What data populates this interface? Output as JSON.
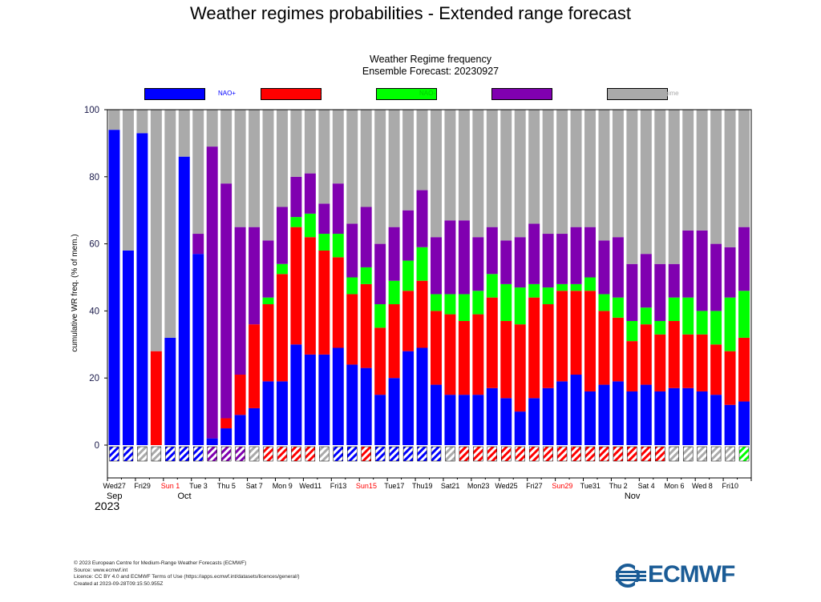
{
  "page": {
    "title": "Weather regimes probabilities - Extended range forecast"
  },
  "chart_data": {
    "type": "bar",
    "stacked": true,
    "title": "Weather Regime frequency",
    "subtitle": "Ensemble Forecast: 20230927",
    "ylabel": "cumulative WR freq. (% of mem.)",
    "ylim": [
      0,
      100
    ],
    "yticks": [
      0,
      20,
      40,
      60,
      80,
      100
    ],
    "grid": false,
    "legend_position": "top",
    "year_label": "2023",
    "series": [
      {
        "name": "NAO+",
        "color": "#0000ff",
        "label_color": "#0000ff",
        "values": [
          94,
          58,
          93,
          0,
          32,
          86,
          57,
          2,
          5,
          9,
          11,
          19,
          19,
          30,
          27,
          27,
          29,
          24,
          23,
          15,
          20,
          28,
          29,
          18,
          15,
          15,
          15,
          17,
          14,
          10,
          14,
          17,
          19,
          21,
          16,
          18,
          19,
          16,
          18,
          16,
          17,
          17,
          16,
          15,
          12,
          13
        ]
      },
      {
        "name": "Block",
        "color": "#ff0000",
        "label_color": "#ff0000",
        "values": [
          0,
          0,
          0,
          28,
          0,
          0,
          0,
          0,
          3,
          12,
          25,
          23,
          32,
          35,
          35,
          31,
          27,
          21,
          25,
          20,
          22,
          18,
          20,
          22,
          24,
          22,
          24,
          27,
          23,
          26,
          30,
          25,
          27,
          25,
          30,
          22,
          19,
          15,
          18,
          17,
          20,
          16,
          17,
          15,
          16,
          19
        ]
      },
      {
        "name": "NAO-",
        "color": "#00ff00",
        "label_color": "#00cc00",
        "values": [
          0,
          0,
          0,
          0,
          0,
          0,
          0,
          0,
          0,
          0,
          0,
          2,
          3,
          3,
          7,
          5,
          7,
          5,
          5,
          7,
          7,
          9,
          10,
          5,
          6,
          8,
          7,
          7,
          11,
          11,
          4,
          5,
          2,
          2,
          4,
          5,
          6,
          6,
          5,
          4,
          7,
          11,
          7,
          10,
          16,
          14
        ]
      },
      {
        "name": "ATR",
        "color": "#8000b0",
        "label_color": "#8000b0",
        "values": [
          0,
          0,
          0,
          0,
          0,
          0,
          6,
          87,
          70,
          44,
          29,
          17,
          17,
          12,
          12,
          9,
          15,
          16,
          18,
          18,
          16,
          15,
          17,
          17,
          22,
          22,
          16,
          14,
          13,
          15,
          18,
          16,
          15,
          17,
          15,
          16,
          18,
          17,
          16,
          17,
          10,
          20,
          24,
          20,
          15,
          19
        ]
      },
      {
        "name": "no regime",
        "color": "#aaaaaa",
        "label_color": "#aaaaaa",
        "values": [
          6,
          42,
          7,
          72,
          68,
          14,
          37,
          11,
          22,
          35,
          35,
          39,
          29,
          20,
          19,
          28,
          22,
          34,
          29,
          40,
          35,
          30,
          24,
          38,
          33,
          33,
          38,
          35,
          39,
          38,
          34,
          37,
          37,
          35,
          35,
          39,
          38,
          46,
          43,
          46,
          46,
          36,
          36,
          40,
          41,
          35
        ]
      }
    ],
    "bottom_markers": [
      "NAO+",
      "NAO+",
      "no regime",
      "no regime",
      "NAO+",
      "NAO+",
      "NAO+",
      "ATR",
      "ATR",
      "ATR",
      "no regime",
      "Block",
      "Block",
      "Block",
      "Block",
      "no regime",
      "NAO+",
      "NAO+",
      "Block",
      "NAO+",
      "NAO+",
      "NAO+",
      "NAO+",
      "NAO+",
      "no regime",
      "Block",
      "Block",
      "Block",
      "Block",
      "Block",
      "Block",
      "Block",
      "Block",
      "Block",
      "Block",
      "Block",
      "Block",
      "Block",
      "Block",
      "Block",
      "no regime",
      "no regime",
      "no regime",
      "no regime",
      "no regime",
      "NAO-"
    ],
    "x_tick_labels": [
      {
        "index": 0,
        "label": "Wed27",
        "color": "#000000"
      },
      {
        "index": 2,
        "label": "Fri29",
        "color": "#000000"
      },
      {
        "index": 4,
        "label": "Sun 1",
        "color": "#ff0000"
      },
      {
        "index": 6,
        "label": "Tue 3",
        "color": "#000000"
      },
      {
        "index": 8,
        "label": "Thu 5",
        "color": "#000000"
      },
      {
        "index": 10,
        "label": "Sat 7",
        "color": "#000000"
      },
      {
        "index": 12,
        "label": "Mon 9",
        "color": "#000000"
      },
      {
        "index": 14,
        "label": "Wed11",
        "color": "#000000"
      },
      {
        "index": 16,
        "label": "Fri13",
        "color": "#000000"
      },
      {
        "index": 18,
        "label": "Sun15",
        "color": "#ff0000"
      },
      {
        "index": 20,
        "label": "Tue17",
        "color": "#000000"
      },
      {
        "index": 22,
        "label": "Thu19",
        "color": "#000000"
      },
      {
        "index": 24,
        "label": "Sat21",
        "color": "#000000"
      },
      {
        "index": 26,
        "label": "Mon23",
        "color": "#000000"
      },
      {
        "index": 28,
        "label": "Wed25",
        "color": "#000000"
      },
      {
        "index": 30,
        "label": "Fri27",
        "color": "#000000"
      },
      {
        "index": 32,
        "label": "Sun29",
        "color": "#ff0000"
      },
      {
        "index": 34,
        "label": "Tue31",
        "color": "#000000"
      },
      {
        "index": 36,
        "label": "Thu 2",
        "color": "#000000"
      },
      {
        "index": 38,
        "label": "Sat 4",
        "color": "#000000"
      },
      {
        "index": 40,
        "label": "Mon 6",
        "color": "#000000"
      },
      {
        "index": 42,
        "label": "Wed 8",
        "color": "#000000"
      },
      {
        "index": 44,
        "label": "Fri10",
        "color": "#000000"
      }
    ],
    "month_labels": [
      {
        "index": 0,
        "label": "Sep"
      },
      {
        "index": 5,
        "label": "Oct"
      },
      {
        "index": 37,
        "label": "Nov"
      }
    ]
  },
  "footer": {
    "copyright": "© 2023 European Centre for Medium-Range Weather Forecasts (ECMWF)",
    "source": "Source: www.ecmwf.int",
    "licence": "Licence: CC BY 4.0 and ECMWF Terms of Use (https://apps.ecmwf.int/datasets/licences/general/)",
    "created": "Created at 2023-09-28T09:15:50.955Z"
  },
  "logo": {
    "text": "ECMWF",
    "color": "#1b5c96"
  }
}
